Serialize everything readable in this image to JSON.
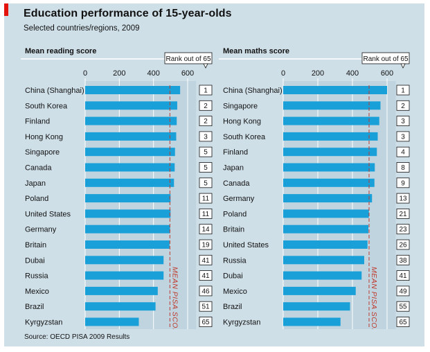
{
  "title": "Education performance of 15-year-olds",
  "subtitle": "Selected countries/regions, 2009",
  "source": "Source: OECD PISA 2009 Results",
  "colors": {
    "bar": "#1aa0d8",
    "background": "#cfdfe8",
    "plot_background": "#bfd4df",
    "mean_line": "#c0392b",
    "brand": "#e3120b"
  },
  "chart_data": [
    {
      "type": "bar",
      "orientation": "horizontal",
      "title": "Mean reading score",
      "rank_header": "Rank out of 65",
      "xlim": [
        0,
        650
      ],
      "xticks": [
        0,
        200,
        400,
        600
      ],
      "mean_line": {
        "value": 496,
        "label": "MEAN PISA SCORE"
      },
      "categories": [
        "China (Shanghai)",
        "South Korea",
        "Finland",
        "Hong Kong",
        "Singapore",
        "Canada",
        "Japan",
        "Poland",
        "United States",
        "Germany",
        "Britain",
        "Dubai",
        "Russia",
        "Mexico",
        "Brazil",
        "Kyrgyzstan"
      ],
      "values": [
        556,
        539,
        536,
        533,
        526,
        524,
        520,
        500,
        500,
        497,
        494,
        459,
        459,
        425,
        412,
        314
      ],
      "ranks": [
        "1",
        "2",
        "2",
        "3",
        "5",
        "5",
        "5",
        "11",
        "11",
        "14",
        "19",
        "41",
        "41",
        "46",
        "51",
        "65"
      ]
    },
    {
      "type": "bar",
      "orientation": "horizontal",
      "title": "Mean maths score",
      "rank_header": "Rank out of 65",
      "xlim": [
        0,
        650
      ],
      "xticks": [
        0,
        200,
        400,
        600
      ],
      "mean_line": {
        "value": 496,
        "label": "MEAN PISA SCORE"
      },
      "categories": [
        "China (Shanghai)",
        "Singapore",
        "Hong Kong",
        "South Korea",
        "Finland",
        "Japan",
        "Canada",
        "Germany",
        "Poland",
        "Britain",
        "United States",
        "Russia",
        "Dubai",
        "Mexico",
        "Brazil",
        "Kyrgyzstan"
      ],
      "values": [
        600,
        562,
        555,
        546,
        541,
        529,
        527,
        513,
        495,
        492,
        487,
        468,
        453,
        419,
        386,
        331
      ],
      "ranks": [
        "1",
        "2",
        "3",
        "3",
        "4",
        "8",
        "9",
        "13",
        "21",
        "23",
        "26",
        "38",
        "41",
        "49",
        "55",
        "65"
      ]
    }
  ]
}
